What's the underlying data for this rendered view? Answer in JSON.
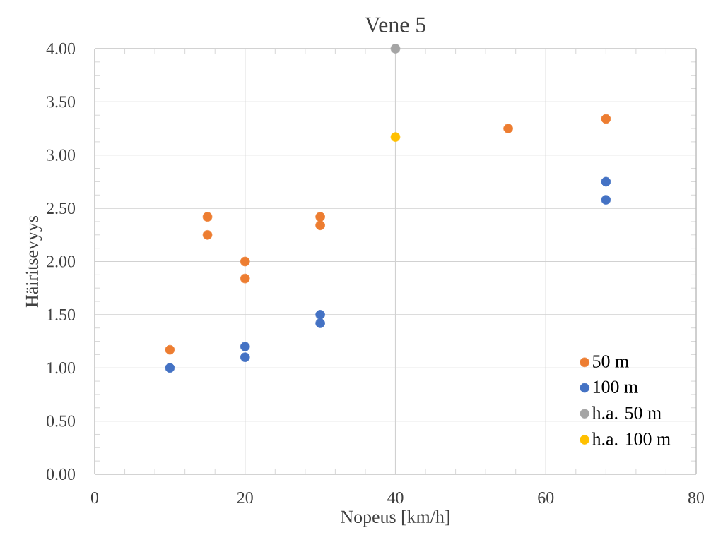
{
  "chart_data": {
    "type": "scatter",
    "title": "Vene 5",
    "xlabel": "Nopeus [km/h]",
    "ylabel": "Häiritsevyys",
    "series": [
      {
        "name": "50 m",
        "color": "#ed7d31",
        "x": [
          10,
          15,
          15,
          20,
          20,
          30,
          30,
          55,
          68
        ],
        "values": [
          1.17,
          2.42,
          2.25,
          2.0,
          1.84,
          2.42,
          2.34,
          3.25,
          3.34
        ]
      },
      {
        "name": "100 m",
        "color": "#4472c4",
        "x": [
          10,
          20,
          20,
          30,
          30,
          68,
          68
        ],
        "values": [
          1.0,
          1.2,
          1.1,
          1.5,
          1.42,
          2.75,
          2.58
        ]
      },
      {
        "name": "h.a. 50 m",
        "color": "#a5a5a5",
        "x": [
          40
        ],
        "values": [
          4.0
        ]
      },
      {
        "name": "h.a. 100 m",
        "color": "#ffc000",
        "x": [
          40
        ],
        "values": [
          3.17
        ]
      }
    ],
    "xlim": [
      0,
      80
    ],
    "xticks": [
      0,
      20,
      40,
      60,
      80
    ],
    "ylim": [
      0,
      4
    ],
    "yticks": [
      {
        "value": 0,
        "label": "0.00"
      },
      {
        "value": 0.5,
        "label": "0.50"
      },
      {
        "value": 1,
        "label": "1.00"
      },
      {
        "value": 1.5,
        "label": "1.50"
      },
      {
        "value": 2,
        "label": "2.00"
      },
      {
        "value": 2.5,
        "label": "2.50"
      },
      {
        "value": 3,
        "label": "3.00"
      },
      {
        "value": 3.5,
        "label": "3.50"
      },
      {
        "value": 4,
        "label": "4.00"
      }
    ],
    "grid": true,
    "legend": "bottom right",
    "marker": "circle"
  }
}
